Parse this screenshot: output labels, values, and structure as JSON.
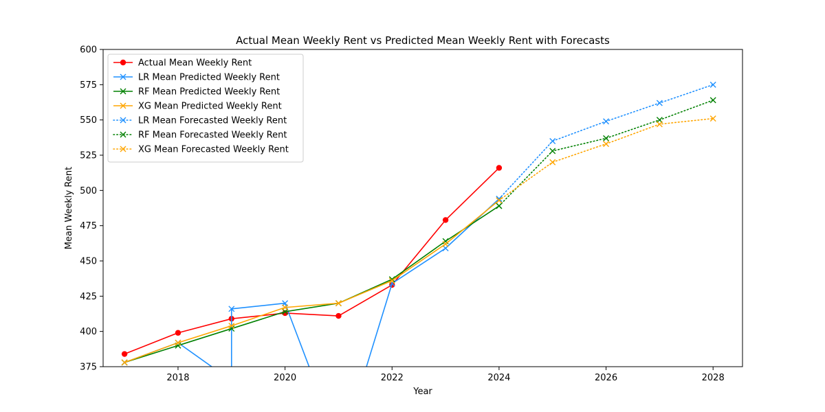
{
  "chart_data": {
    "type": "line",
    "title": "Actual Mean Weekly Rent vs Predicted Mean Weekly Rent with Forecasts",
    "xlabel": "Year",
    "ylabel": "Mean Weekly Rent",
    "xlim": [
      2016.6,
      2028.55
    ],
    "ylim": [
      375,
      600
    ],
    "xticks": [
      2018,
      2020,
      2022,
      2024,
      2026,
      2028
    ],
    "yticks": [
      375,
      400,
      425,
      450,
      475,
      500,
      525,
      550,
      575,
      600
    ],
    "grid": false,
    "legend_position": "top-left",
    "series": [
      {
        "name": "Actual Mean Weekly Rent",
        "color": "#ff0000",
        "marker": "circle",
        "line_style": "solid",
        "x": [
          2017,
          2018,
          2019,
          2020,
          2021,
          2022,
          2023,
          2024
        ],
        "values": [
          384,
          399,
          409,
          413,
          411,
          433,
          479,
          516
        ]
      },
      {
        "name": "LR Mean Predicted Weekly Rent",
        "color": "#1e90ff",
        "marker": "x",
        "line_style": "solid",
        "x": [
          2017,
          2018,
          2019,
          2019,
          2020,
          2020.6,
          2021.4,
          2022,
          2023,
          2024
        ],
        "values": [
          378,
          392,
          365,
          416,
          420,
          360,
          360,
          434,
          459,
          494
        ],
        "marker_indices": [
          0,
          1,
          3,
          4,
          7,
          8,
          9
        ]
      },
      {
        "name": "RF Mean Predicted Weekly Rent",
        "color": "#008000",
        "marker": "x",
        "line_style": "solid",
        "x": [
          2017,
          2018,
          2019,
          2020,
          2021,
          2022,
          2023,
          2024
        ],
        "values": [
          378,
          390,
          402,
          414,
          420,
          437,
          464,
          489
        ]
      },
      {
        "name": "XG Mean Predicted Weekly Rent",
        "color": "#ffa500",
        "marker": "x",
        "line_style": "solid",
        "x": [
          2017,
          2018,
          2019,
          2020,
          2021,
          2022,
          2023,
          2024
        ],
        "values": [
          378,
          392,
          404,
          417,
          420,
          436,
          462,
          493
        ]
      },
      {
        "name": "LR Mean Forecasted Weekly Rent",
        "color": "#1e90ff",
        "marker": "x",
        "line_style": "dotted",
        "x": [
          2024,
          2025,
          2026,
          2027,
          2028
        ],
        "values": [
          494,
          535,
          549,
          562,
          575
        ]
      },
      {
        "name": "RF Mean Forecasted Weekly Rent",
        "color": "#008000",
        "marker": "x",
        "line_style": "dotted",
        "x": [
          2024,
          2025,
          2026,
          2027,
          2028
        ],
        "values": [
          489,
          528,
          537,
          550,
          564
        ]
      },
      {
        "name": "XG Mean Forecasted Weekly Rent",
        "color": "#ffa500",
        "marker": "x",
        "line_style": "dotted",
        "x": [
          2024,
          2025,
          2026,
          2027,
          2028
        ],
        "values": [
          493,
          520,
          533,
          547,
          551
        ]
      }
    ]
  }
}
